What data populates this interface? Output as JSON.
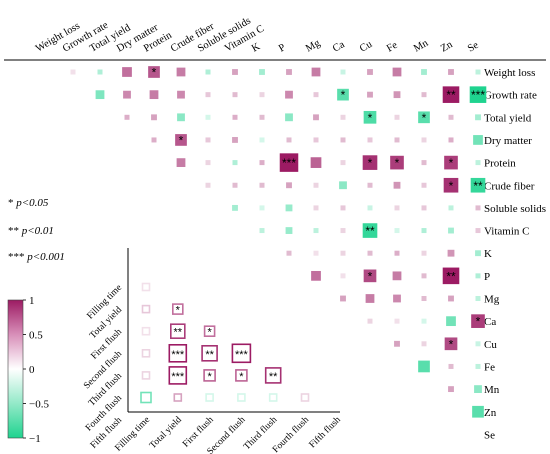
{
  "chart_data": [
    {
      "type": "heatmap",
      "subtype": "lower-triangular correlation matrix (upper triangle shown)",
      "variables": [
        "Weight loss",
        "Growth rate",
        "Total yield",
        "Dry matter",
        "Protein",
        "Crude fiber",
        "Soluble solids",
        "Vitamin C",
        "K",
        "P",
        "Mg",
        "Ca",
        "Cu",
        "Fe",
        "Mn",
        "Zn",
        "Se"
      ],
      "color_scale": {
        "min": -1,
        "max": 1,
        "ticks": [
          "1",
          "0.5",
          "0",
          "−0.5",
          "−1"
        ],
        "positive_color": "#9c1b63",
        "negative_color": "#1fd38f"
      },
      "cells": [
        {
          "row": "Weight loss",
          "col": "Growth rate",
          "r": 0.05,
          "sig": ""
        },
        {
          "row": "Weight loss",
          "col": "Total yield",
          "r": -0.25,
          "sig": ""
        },
        {
          "row": "Weight loss",
          "col": "Dry matter",
          "r": 0.5,
          "sig": ""
        },
        {
          "row": "Weight loss",
          "col": "Protein",
          "r": 0.6,
          "sig": "*"
        },
        {
          "row": "Weight loss",
          "col": "Crude fiber",
          "r": 0.45,
          "sig": ""
        },
        {
          "row": "Weight loss",
          "col": "Soluble solids",
          "r": -0.25,
          "sig": ""
        },
        {
          "row": "Weight loss",
          "col": "Vitamin C",
          "r": 0.3,
          "sig": ""
        },
        {
          "row": "Weight loss",
          "col": "K",
          "r": -0.3,
          "sig": ""
        },
        {
          "row": "Weight loss",
          "col": "P",
          "r": 0.3,
          "sig": ""
        },
        {
          "row": "Weight loss",
          "col": "Mg",
          "r": 0.45,
          "sig": ""
        },
        {
          "row": "Weight loss",
          "col": "Ca",
          "r": -0.15,
          "sig": ""
        },
        {
          "row": "Weight loss",
          "col": "Cu",
          "r": 0.3,
          "sig": ""
        },
        {
          "row": "Weight loss",
          "col": "Fe",
          "r": 0.45,
          "sig": ""
        },
        {
          "row": "Weight loss",
          "col": "Mn",
          "r": -0.3,
          "sig": ""
        },
        {
          "row": "Weight loss",
          "col": "Zn",
          "r": 0.3,
          "sig": ""
        },
        {
          "row": "Weight loss",
          "col": "Se",
          "r": -0.2,
          "sig": ""
        },
        {
          "row": "Growth rate",
          "col": "Total yield",
          "r": -0.45,
          "sig": ""
        },
        {
          "row": "Growth rate",
          "col": "Dry matter",
          "r": 0.4,
          "sig": ""
        },
        {
          "row": "Growth rate",
          "col": "Protein",
          "r": 0.45,
          "sig": ""
        },
        {
          "row": "Growth rate",
          "col": "Crude fiber",
          "r": 0.4,
          "sig": ""
        },
        {
          "row": "Growth rate",
          "col": "Soluble solids",
          "r": 0.15,
          "sig": ""
        },
        {
          "row": "Growth rate",
          "col": "Vitamin C",
          "r": 0.2,
          "sig": ""
        },
        {
          "row": "Growth rate",
          "col": "K",
          "r": 0.1,
          "sig": ""
        },
        {
          "row": "Growth rate",
          "col": "P",
          "r": 0.4,
          "sig": ""
        },
        {
          "row": "Growth rate",
          "col": "Mg",
          "r": 0.15,
          "sig": ""
        },
        {
          "row": "Growth rate",
          "col": "Ca",
          "r": -0.6,
          "sig": "*"
        },
        {
          "row": "Growth rate",
          "col": "Cu",
          "r": 0.3,
          "sig": ""
        },
        {
          "row": "Growth rate",
          "col": "Fe",
          "r": 0.35,
          "sig": ""
        },
        {
          "row": "Growth rate",
          "col": "Mn",
          "r": 0.2,
          "sig": ""
        },
        {
          "row": "Growth rate",
          "col": "Zn",
          "r": 0.85,
          "sig": "**"
        },
        {
          "row": "Growth rate",
          "col": "Se",
          "r": -0.85,
          "sig": "***"
        },
        {
          "row": "Total yield",
          "col": "Dry matter",
          "r": 0.25,
          "sig": ""
        },
        {
          "row": "Total yield",
          "col": "Protein",
          "r": 0.3,
          "sig": ""
        },
        {
          "row": "Total yield",
          "col": "Crude fiber",
          "r": -0.4,
          "sig": ""
        },
        {
          "row": "Total yield",
          "col": "Soluble solids",
          "r": -0.1,
          "sig": ""
        },
        {
          "row": "Total yield",
          "col": "Vitamin C",
          "r": 0.25,
          "sig": ""
        },
        {
          "row": "Total yield",
          "col": "K",
          "r": 0.2,
          "sig": ""
        },
        {
          "row": "Total yield",
          "col": "P",
          "r": -0.4,
          "sig": ""
        },
        {
          "row": "Total yield",
          "col": "Mg",
          "r": 0.3,
          "sig": ""
        },
        {
          "row": "Total yield",
          "col": "Ca",
          "r": 0.1,
          "sig": ""
        },
        {
          "row": "Total yield",
          "col": "Cu",
          "r": -0.65,
          "sig": "*"
        },
        {
          "row": "Total yield",
          "col": "Fe",
          "r": 0.1,
          "sig": ""
        },
        {
          "row": "Total yield",
          "col": "Mn",
          "r": -0.6,
          "sig": "*"
        },
        {
          "row": "Total yield",
          "col": "Zn",
          "r": 0.2,
          "sig": ""
        },
        {
          "row": "Total yield",
          "col": "Se",
          "r": -0.3,
          "sig": ""
        },
        {
          "row": "Dry matter",
          "col": "Protein",
          "r": 0.25,
          "sig": ""
        },
        {
          "row": "Dry matter",
          "col": "Crude fiber",
          "r": 0.6,
          "sig": "*"
        },
        {
          "row": "Dry matter",
          "col": "Soluble solids",
          "r": 0.15,
          "sig": ""
        },
        {
          "row": "Dry matter",
          "col": "Vitamin C",
          "r": 0.3,
          "sig": ""
        },
        {
          "row": "Dry matter",
          "col": "K",
          "r": -0.1,
          "sig": ""
        },
        {
          "row": "Dry matter",
          "col": "P",
          "r": 0.2,
          "sig": ""
        },
        {
          "row": "Dry matter",
          "col": "Mg",
          "r": 0.15,
          "sig": ""
        },
        {
          "row": "Dry matter",
          "col": "Ca",
          "r": 0.2,
          "sig": ""
        },
        {
          "row": "Dry matter",
          "col": "Cu",
          "r": 0.15,
          "sig": ""
        },
        {
          "row": "Dry matter",
          "col": "Fe",
          "r": 0.2,
          "sig": ""
        },
        {
          "row": "Dry matter",
          "col": "Mn",
          "r": 0.1,
          "sig": ""
        },
        {
          "row": "Dry matter",
          "col": "Zn",
          "r": 0.25,
          "sig": ""
        },
        {
          "row": "Dry matter",
          "col": "Se",
          "r": -0.5,
          "sig": ""
        },
        {
          "row": "Protein",
          "col": "Crude fiber",
          "r": 0.45,
          "sig": ""
        },
        {
          "row": "Protein",
          "col": "Soluble solids",
          "r": 0.1,
          "sig": ""
        },
        {
          "row": "Protein",
          "col": "Vitamin C",
          "r": -0.25,
          "sig": ""
        },
        {
          "row": "Protein",
          "col": "K",
          "r": 0.25,
          "sig": ""
        },
        {
          "row": "Protein",
          "col": "P",
          "r": 0.95,
          "sig": "***"
        },
        {
          "row": "Protein",
          "col": "Mg",
          "r": 0.55,
          "sig": ""
        },
        {
          "row": "Protein",
          "col": "Ca",
          "r": 0.1,
          "sig": ""
        },
        {
          "row": "Protein",
          "col": "Cu",
          "r": 0.75,
          "sig": "*"
        },
        {
          "row": "Protein",
          "col": "Fe",
          "r": 0.7,
          "sig": "*"
        },
        {
          "row": "Protein",
          "col": "Mn",
          "r": 0.2,
          "sig": ""
        },
        {
          "row": "Protein",
          "col": "Zn",
          "r": 0.7,
          "sig": "*"
        },
        {
          "row": "Protein",
          "col": "Se",
          "r": -0.2,
          "sig": ""
        },
        {
          "row": "Crude fiber",
          "col": "Soluble solids",
          "r": 0.1,
          "sig": ""
        },
        {
          "row": "Crude fiber",
          "col": "Vitamin C",
          "r": 0.2,
          "sig": ""
        },
        {
          "row": "Crude fiber",
          "col": "K",
          "r": 0.2,
          "sig": ""
        },
        {
          "row": "Crude fiber",
          "col": "P",
          "r": 0.3,
          "sig": ""
        },
        {
          "row": "Crude fiber",
          "col": "Mg",
          "r": 0.1,
          "sig": ""
        },
        {
          "row": "Crude fiber",
          "col": "Ca",
          "r": -0.4,
          "sig": ""
        },
        {
          "row": "Crude fiber",
          "col": "Cu",
          "r": 0.2,
          "sig": ""
        },
        {
          "row": "Crude fiber",
          "col": "Fe",
          "r": 0.35,
          "sig": ""
        },
        {
          "row": "Crude fiber",
          "col": "Mn",
          "r": 0.15,
          "sig": ""
        },
        {
          "row": "Crude fiber",
          "col": "Zn",
          "r": 0.75,
          "sig": "*"
        },
        {
          "row": "Crude fiber",
          "col": "Se",
          "r": -0.75,
          "sig": "**"
        },
        {
          "row": "Soluble solids",
          "col": "Vitamin C",
          "r": -0.3,
          "sig": ""
        },
        {
          "row": "Soluble solids",
          "col": "K",
          "r": -0.1,
          "sig": ""
        },
        {
          "row": "Soluble solids",
          "col": "P",
          "r": -0.35,
          "sig": ""
        },
        {
          "row": "Soluble solids",
          "col": "Mg",
          "r": 0.1,
          "sig": ""
        },
        {
          "row": "Soluble solids",
          "col": "Ca",
          "r": 0.15,
          "sig": ""
        },
        {
          "row": "Soluble solids",
          "col": "Cu",
          "r": -0.15,
          "sig": ""
        },
        {
          "row": "Soluble solids",
          "col": "Fe",
          "r": 0.1,
          "sig": ""
        },
        {
          "row": "Soluble solids",
          "col": "Mn",
          "r": 0.15,
          "sig": ""
        },
        {
          "row": "Soluble solids",
          "col": "Zn",
          "r": -0.2,
          "sig": ""
        },
        {
          "row": "Soluble solids",
          "col": "Se",
          "r": 0.2,
          "sig": ""
        },
        {
          "row": "Vitamin C",
          "col": "K",
          "r": -0.2,
          "sig": ""
        },
        {
          "row": "Vitamin C",
          "col": "P",
          "r": -0.35,
          "sig": ""
        },
        {
          "row": "Vitamin C",
          "col": "Mg",
          "r": -0.2,
          "sig": ""
        },
        {
          "row": "Vitamin C",
          "col": "Ca",
          "r": 0.1,
          "sig": ""
        },
        {
          "row": "Vitamin C",
          "col": "Cu",
          "r": -0.75,
          "sig": "**"
        },
        {
          "row": "Vitamin C",
          "col": "Fe",
          "r": -0.1,
          "sig": ""
        },
        {
          "row": "Vitamin C",
          "col": "Mn",
          "r": -0.25,
          "sig": ""
        },
        {
          "row": "Vitamin C",
          "col": "Zn",
          "r": -0.3,
          "sig": ""
        },
        {
          "row": "Vitamin C",
          "col": "Se",
          "r": 0.15,
          "sig": ""
        },
        {
          "row": "K",
          "col": "P",
          "r": 0.2,
          "sig": ""
        },
        {
          "row": "K",
          "col": "Mg",
          "r": 0.05,
          "sig": ""
        },
        {
          "row": "K",
          "col": "Ca",
          "r": 0.1,
          "sig": ""
        },
        {
          "row": "K",
          "col": "Cu",
          "r": 0.2,
          "sig": ""
        },
        {
          "row": "K",
          "col": "Fe",
          "r": 0.25,
          "sig": ""
        },
        {
          "row": "K",
          "col": "Mn",
          "r": 0.1,
          "sig": ""
        },
        {
          "row": "K",
          "col": "Zn",
          "r": 0.35,
          "sig": ""
        },
        {
          "row": "K",
          "col": "Se",
          "r": -0.3,
          "sig": ""
        },
        {
          "row": "P",
          "col": "Mg",
          "r": 0.5,
          "sig": ""
        },
        {
          "row": "P",
          "col": "Ca",
          "r": 0.05,
          "sig": ""
        },
        {
          "row": "P",
          "col": "Cu",
          "r": 0.65,
          "sig": "*"
        },
        {
          "row": "P",
          "col": "Fe",
          "r": 0.45,
          "sig": ""
        },
        {
          "row": "P",
          "col": "Mn",
          "r": 0.2,
          "sig": ""
        },
        {
          "row": "P",
          "col": "Zn",
          "r": 0.85,
          "sig": "**"
        },
        {
          "row": "P",
          "col": "Se",
          "r": -0.25,
          "sig": ""
        },
        {
          "row": "Mg",
          "col": "Ca",
          "r": 0.3,
          "sig": ""
        },
        {
          "row": "Mg",
          "col": "Cu",
          "r": 0.45,
          "sig": ""
        },
        {
          "row": "Mg",
          "col": "Fe",
          "r": 0.4,
          "sig": ""
        },
        {
          "row": "Mg",
          "col": "Mn",
          "r": 0.2,
          "sig": ""
        },
        {
          "row": "Mg",
          "col": "Zn",
          "r": 0.3,
          "sig": ""
        },
        {
          "row": "Mg",
          "col": "Se",
          "r": -0.2,
          "sig": ""
        },
        {
          "row": "Ca",
          "col": "Cu",
          "r": 0.1,
          "sig": ""
        },
        {
          "row": "Ca",
          "col": "Fe",
          "r": 0.05,
          "sig": ""
        },
        {
          "row": "Ca",
          "col": "Mn",
          "r": -0.1,
          "sig": ""
        },
        {
          "row": "Ca",
          "col": "Zn",
          "r": -0.5,
          "sig": ""
        },
        {
          "row": "Ca",
          "col": "Se",
          "r": 0.7,
          "sig": "*"
        },
        {
          "row": "Cu",
          "col": "Fe",
          "r": 0.3,
          "sig": ""
        },
        {
          "row": "Cu",
          "col": "Mn",
          "r": 0.1,
          "sig": ""
        },
        {
          "row": "Cu",
          "col": "Zn",
          "r": 0.65,
          "sig": "*"
        },
        {
          "row": "Cu",
          "col": "Se",
          "r": -0.15,
          "sig": ""
        },
        {
          "row": "Fe",
          "col": "Mn",
          "r": -0.6,
          "sig": ""
        },
        {
          "row": "Fe",
          "col": "Zn",
          "r": 0.2,
          "sig": ""
        },
        {
          "row": "Fe",
          "col": "Se",
          "r": -0.2,
          "sig": ""
        },
        {
          "row": "Mn",
          "col": "Zn",
          "r": 0.3,
          "sig": ""
        },
        {
          "row": "Mn",
          "col": "Se",
          "r": -0.4,
          "sig": ""
        },
        {
          "row": "Zn",
          "col": "Se",
          "r": -0.6,
          "sig": ""
        }
      ]
    },
    {
      "type": "heatmap",
      "subtype": "inset lower-triangular correlation matrix (outlined squares)",
      "variables": [
        "Filling time",
        "Total yield",
        "First flush",
        "Second flush",
        "Third flush",
        "Fourth flush",
        "Fifth flush"
      ],
      "cells": [
        {
          "row": "Total yield",
          "col": "Filling time",
          "r": 0.05,
          "sig": ""
        },
        {
          "row": "First flush",
          "col": "Filling time",
          "r": 0.15,
          "sig": ""
        },
        {
          "row": "First flush",
          "col": "Total yield",
          "r": 0.5,
          "sig": "*"
        },
        {
          "row": "Second flush",
          "col": "Filling time",
          "r": 0.05,
          "sig": ""
        },
        {
          "row": "Second flush",
          "col": "Total yield",
          "r": 0.7,
          "sig": "**"
        },
        {
          "row": "Second flush",
          "col": "First flush",
          "r": 0.5,
          "sig": "*"
        },
        {
          "row": "Third flush",
          "col": "Filling time",
          "r": 0.1,
          "sig": ""
        },
        {
          "row": "Third flush",
          "col": "Total yield",
          "r": 0.85,
          "sig": "***"
        },
        {
          "row": "Third flush",
          "col": "First flush",
          "r": 0.75,
          "sig": "**"
        },
        {
          "row": "Third flush",
          "col": "Second flush",
          "r": 0.9,
          "sig": "***"
        },
        {
          "row": "Fourth flush",
          "col": "Filling time",
          "r": 0.1,
          "sig": ""
        },
        {
          "row": "Fourth flush",
          "col": "Total yield",
          "r": 0.85,
          "sig": "***"
        },
        {
          "row": "Fourth flush",
          "col": "First flush",
          "r": 0.55,
          "sig": "*"
        },
        {
          "row": "Fourth flush",
          "col": "Second flush",
          "r": 0.55,
          "sig": "*"
        },
        {
          "row": "Fourth flush",
          "col": "Third flush",
          "r": 0.75,
          "sig": "**"
        },
        {
          "row": "Fifth flush",
          "col": "Filling time",
          "r": -0.5,
          "sig": ""
        },
        {
          "row": "Fifth flush",
          "col": "Total yield",
          "r": 0.3,
          "sig": ""
        },
        {
          "row": "Fifth flush",
          "col": "First flush",
          "r": -0.1,
          "sig": ""
        },
        {
          "row": "Fifth flush",
          "col": "Second flush",
          "r": -0.1,
          "sig": ""
        },
        {
          "row": "Fifth flush",
          "col": "Third flush",
          "r": -0.1,
          "sig": ""
        },
        {
          "row": "Fifth flush",
          "col": "Fourth flush",
          "r": 0.1,
          "sig": ""
        }
      ]
    }
  ],
  "significance_legend": [
    {
      "stars": "* ",
      "label": "p<0.05"
    },
    {
      "stars": "** ",
      "label": "p<0.01"
    },
    {
      "stars": "*** ",
      "label": "p<0.001"
    }
  ]
}
